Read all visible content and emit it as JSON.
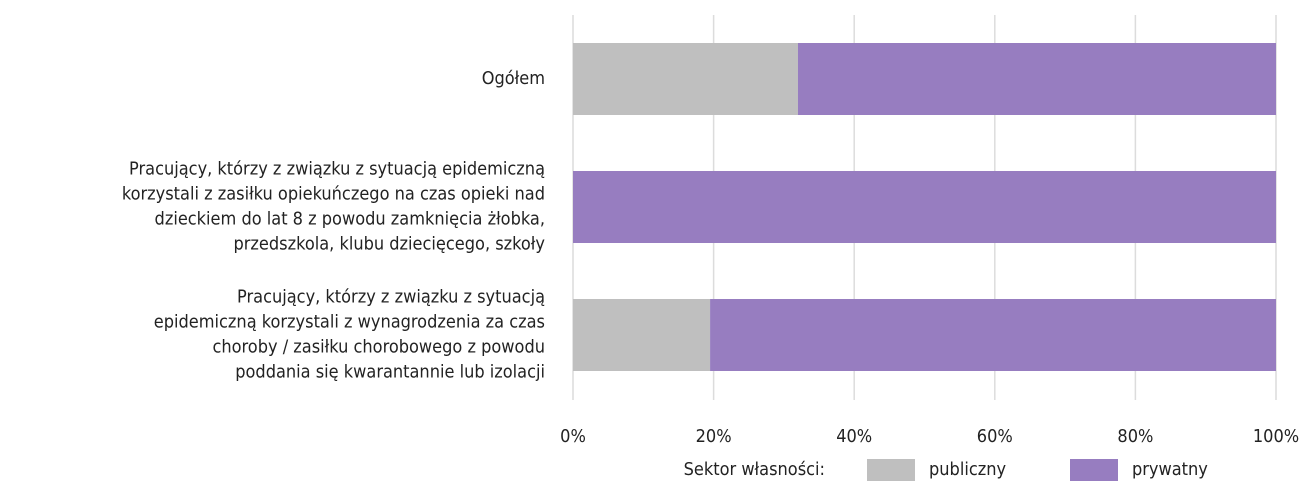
{
  "chart_data": {
    "type": "stacked_barh",
    "categories": [
      [
        "Ogółem"
      ],
      [
        "Pracujący, którzy z związku z sytuacją epidemiczną",
        "korzystali z zasiłku opiekuńczego na czas opieki nad",
        "dzieckiem do lat 8 z powodu zamknięcia żłobka,",
        "przedszkola, klubu dziecięcego, szkoły"
      ],
      [
        "Pracujący, którzy z związku z sytuacją",
        "epidemiczną korzystali z wynagrodzenia za czas",
        "choroby / zasiłku chorobowego z powodu",
        "poddania się kwarantannie lub izolacji"
      ]
    ],
    "series": [
      {
        "name": "publiczny",
        "color": "#bfbfbf",
        "values": [
          32,
          0,
          19.5
        ]
      },
      {
        "name": "prywatny",
        "color": "#977dc0",
        "values": [
          68,
          100,
          80.5
        ]
      }
    ],
    "xlim": [
      0,
      100
    ],
    "xticks": [
      {
        "value": 0,
        "label": "0%"
      },
      {
        "value": 20,
        "label": "20%"
      },
      {
        "value": 40,
        "label": "40%"
      },
      {
        "value": 60,
        "label": "60%"
      },
      {
        "value": 80,
        "label": "80%"
      },
      {
        "value": 100,
        "label": "100%"
      }
    ],
    "grid": true,
    "legend_title": "Sektor własności:",
    "legend_position": "bottom"
  }
}
